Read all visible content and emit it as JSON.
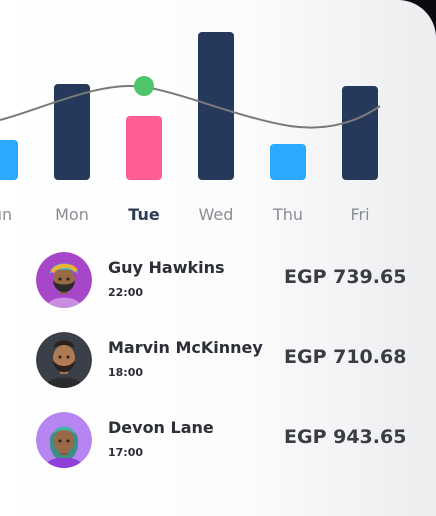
{
  "chart_data": {
    "type": "bar",
    "categories": [
      "Sun",
      "Mon",
      "Tue",
      "Wed",
      "Thu",
      "Fri"
    ],
    "visible_labels": [
      "un",
      "Mon",
      "Tue",
      "Wed",
      "Thu",
      "Fri"
    ],
    "active_day": "Tue",
    "values": [
      40,
      96,
      64,
      148,
      36,
      94
    ],
    "bar_colors": [
      "#2aa9ff",
      "#26395a",
      "#ff5e93",
      "#26395a",
      "#2aa9ff",
      "#26395a"
    ],
    "trend_line_color": "#7a7a7a",
    "marker_color": "#4fc56b",
    "ylim": [
      0,
      150
    ],
    "grid": false
  },
  "transactions": [
    {
      "name": "Guy Hawkins",
      "time": "22:00",
      "amount": "EGP 739.65",
      "avatar": "avatar-turban-icon",
      "avatar_bg": "#a746c9"
    },
    {
      "name": "Marvin McKinney",
      "time": "18:00",
      "amount": "EGP 710.68",
      "avatar": "avatar-bearded-man-icon",
      "avatar_bg": "#3a3f48"
    },
    {
      "name": "Devon Lane",
      "time": "17:00",
      "amount": "EGP 943.65",
      "avatar": "avatar-woman-icon",
      "avatar_bg": "#b685f2"
    }
  ]
}
